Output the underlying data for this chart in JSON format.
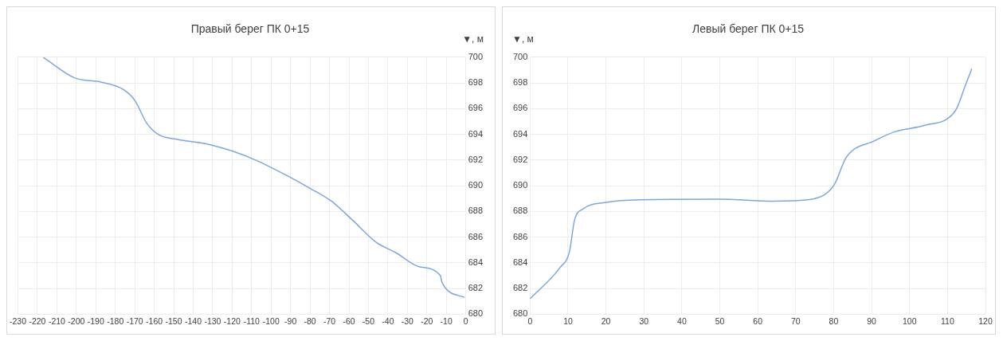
{
  "chart_data": [
    {
      "type": "line",
      "title": "Правый берег ПК 0+15",
      "y2label": "▼, м",
      "x": [
        -217,
        -201,
        -187,
        -176,
        -170,
        -164,
        -158,
        -148,
        -133,
        -120,
        -108,
        -92,
        -80,
        -69,
        -58,
        -46,
        -36,
        -24,
        -13,
        -12.3,
        -0.6
      ],
      "series": [
        {
          "color": "#7ea6d8",
          "axis": "y2",
          "values": [
            700,
            698.4,
            698.05,
            697.5,
            696.65,
            694.9,
            694.0,
            693.6,
            693.25,
            692.7,
            692.0,
            690.8,
            689.8,
            688.8,
            687.3,
            685.6,
            684.8,
            683.7,
            683.0,
            682.5,
            681.3
          ]
        }
      ],
      "xlim": [
        -230,
        0
      ],
      "xticks": [
        -230,
        -220,
        -210,
        -200,
        -190,
        -180,
        -170,
        -160,
        -150,
        -140,
        -130,
        -120,
        -110,
        -100,
        -90,
        -80,
        -70,
        -60,
        -50,
        -40,
        -30,
        -20,
        -10,
        0
      ],
      "y2lim": [
        680,
        700
      ],
      "y2ticks": [
        680,
        682,
        684,
        686,
        688,
        690,
        692,
        694,
        696,
        698,
        700
      ],
      "grid": true,
      "legend": false,
      "marker": "none",
      "line_style": "solid"
    },
    {
      "type": "line",
      "title": "Левый берег ПК 0+15",
      "ylabel": "▼, м",
      "x": [
        0,
        7.8,
        10.4,
        11.7,
        14,
        20,
        29,
        50,
        64,
        73,
        77.6,
        80.2,
        83.3,
        90.8,
        96.1,
        104,
        112,
        114.7,
        116.4
      ],
      "series": [
        {
          "color": "#7ea6d8",
          "values": [
            681.2,
            683.6,
            684.9,
            687.3,
            688.2,
            688.7,
            688.9,
            688.95,
            688.8,
            688.9,
            689.3,
            690.1,
            692.2,
            693.5,
            694.2,
            694.7,
            695.8,
            697.8,
            699.1
          ]
        }
      ],
      "xlim": [
        0,
        120
      ],
      "xticks": [
        0,
        10,
        20,
        30,
        40,
        50,
        60,
        70,
        80,
        90,
        100,
        110,
        120
      ],
      "ylim": [
        680,
        700
      ],
      "yticks": [
        680,
        682,
        684,
        686,
        688,
        690,
        692,
        694,
        696,
        698,
        700
      ],
      "grid": true,
      "legend": false,
      "marker": "none",
      "line_style": "solid"
    }
  ]
}
